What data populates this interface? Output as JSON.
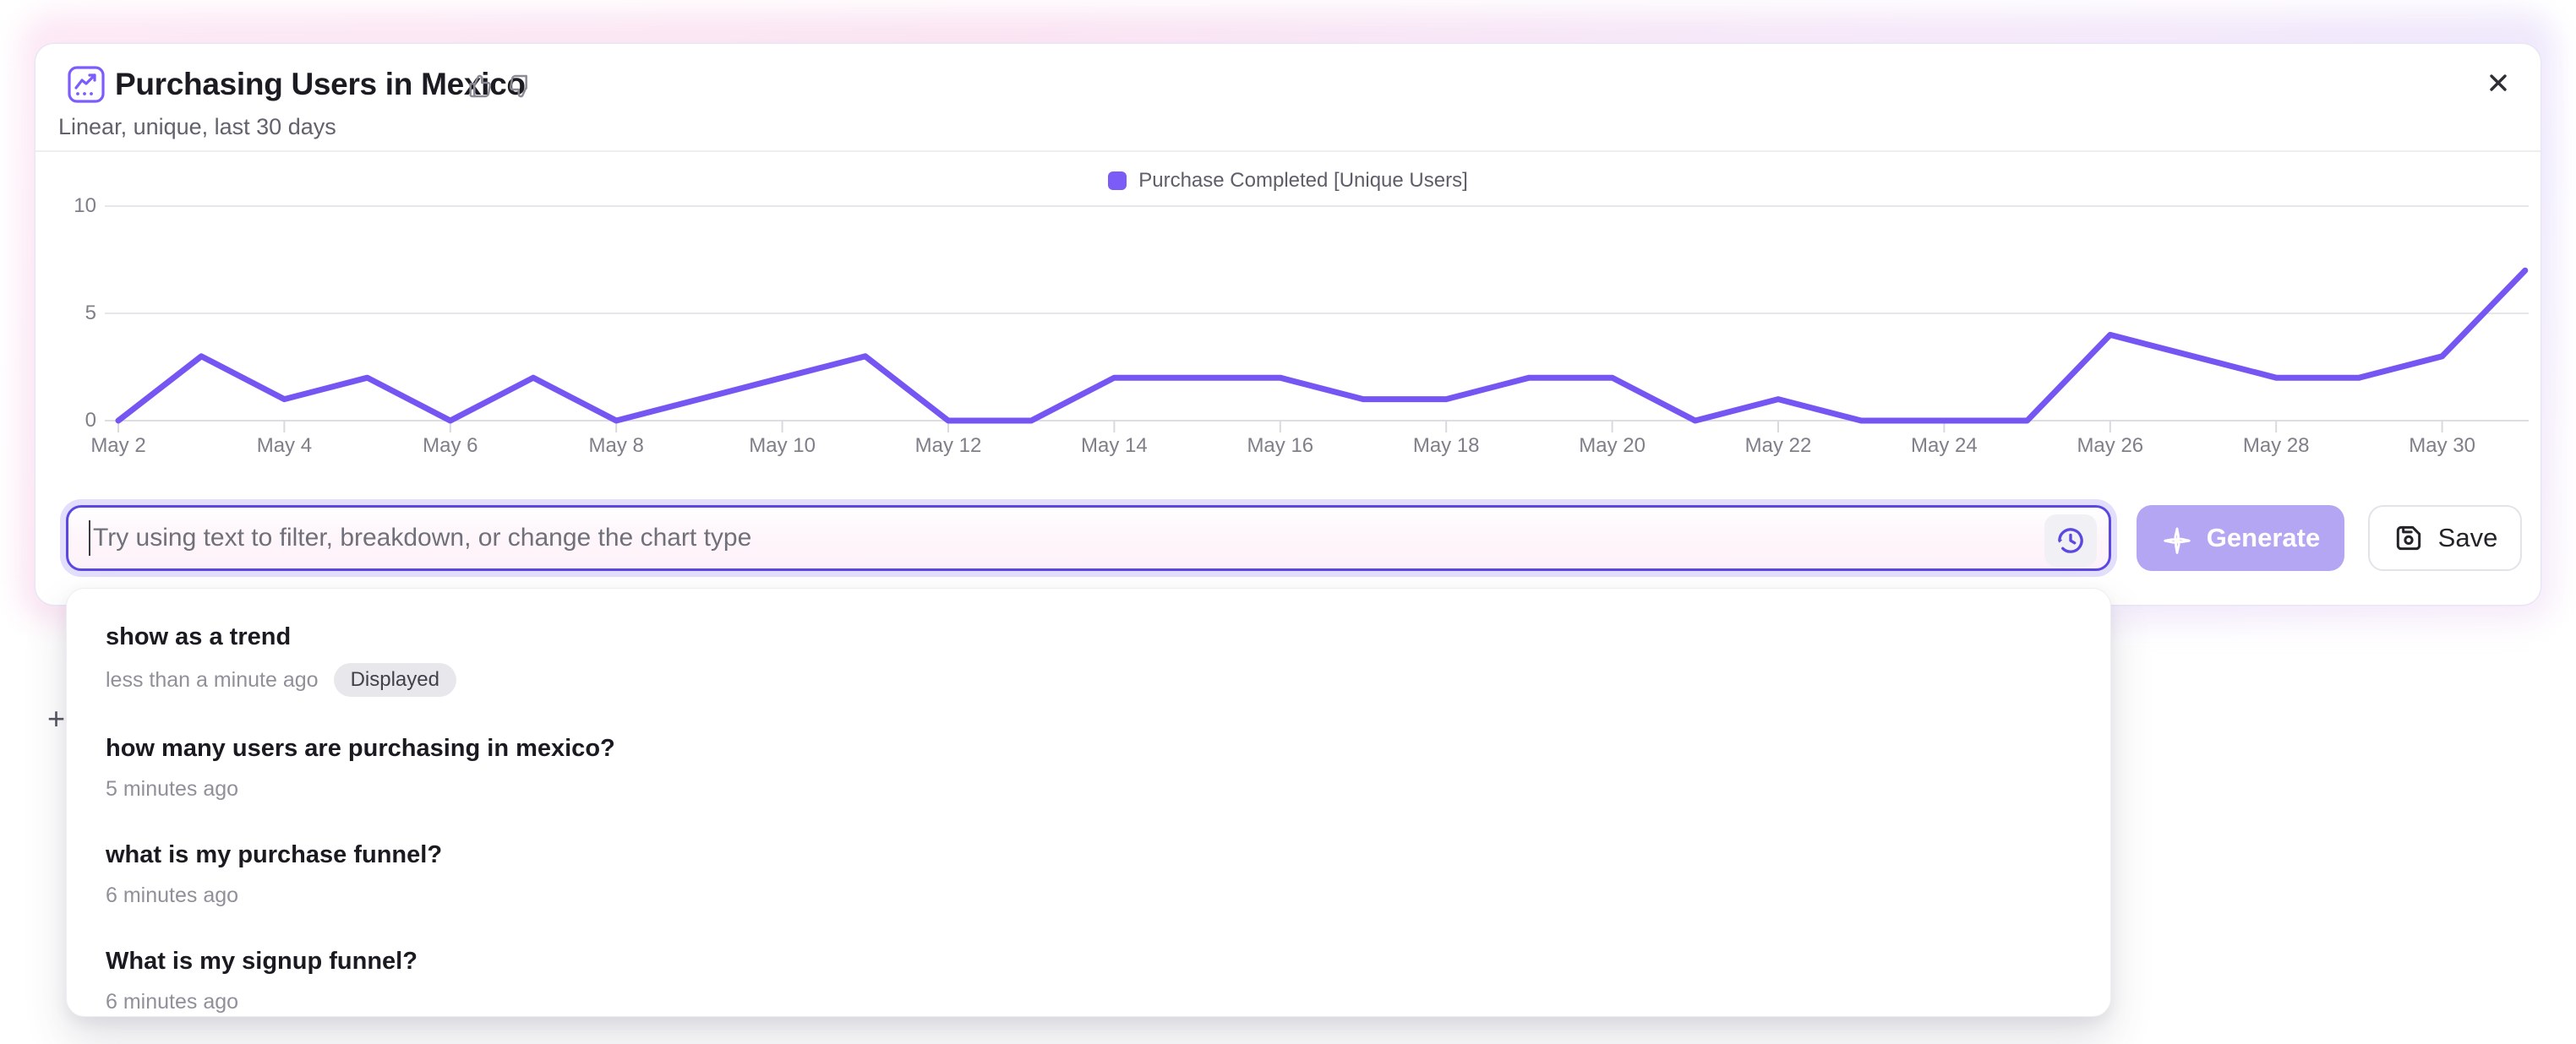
{
  "header": {
    "title": "Purchasing Users in Mexico",
    "subtitle": "Linear, unique, last 30 days"
  },
  "legend": {
    "label": "Purchase Completed [Unique Users]",
    "swatch_color": "#7B5CF6"
  },
  "chart_data": {
    "type": "line",
    "title": "Purchasing Users in Mexico",
    "subtitle": "Linear, unique, last 30 days",
    "x": [
      "May 2",
      "May 3",
      "May 4",
      "May 5",
      "May 6",
      "May 7",
      "May 8",
      "May 9",
      "May 10",
      "May 11",
      "May 12",
      "May 13",
      "May 14",
      "May 15",
      "May 16",
      "May 17",
      "May 18",
      "May 19",
      "May 20",
      "May 21",
      "May 22",
      "May 23",
      "May 24",
      "May 25",
      "May 26",
      "May 27",
      "May 28",
      "May 29",
      "May 30",
      "May 31"
    ],
    "series": [
      {
        "name": "Purchase Completed [Unique Users]",
        "values": [
          0,
          3,
          1,
          2,
          0,
          2,
          0,
          1,
          2,
          3,
          0,
          0,
          2,
          2,
          2,
          1,
          1,
          2,
          2,
          0,
          1,
          0,
          0,
          0,
          4,
          3,
          2,
          2,
          3,
          7
        ],
        "color": "#7656F3"
      }
    ],
    "x_tick_step": 2,
    "yticks": [
      0,
      5,
      10
    ],
    "ylim": [
      0,
      10
    ],
    "grid": true,
    "legend_position": "top-center",
    "line_color": "#7656F3",
    "grid_color": "#e7e7eb",
    "axis_text_color": "#7f7f89"
  },
  "prompt_bar": {
    "placeholder": "Try using text to filter, breakdown, or change the chart type",
    "value": "",
    "generate_label": "Generate",
    "generate_enabled": false,
    "save_label": "Save"
  },
  "history_dropdown": {
    "items": [
      {
        "query": "show as a trend",
        "time": "less than a minute ago",
        "badge": "Displayed"
      },
      {
        "query": "how many users are purchasing in mexico?",
        "time": "5 minutes ago",
        "badge": ""
      },
      {
        "query": "what is my purchase funnel?",
        "time": "6 minutes ago",
        "badge": ""
      },
      {
        "query": "What is my signup funnel?",
        "time": "6 minutes ago",
        "badge": ""
      }
    ]
  },
  "misc": {
    "partial_plus": "+"
  }
}
